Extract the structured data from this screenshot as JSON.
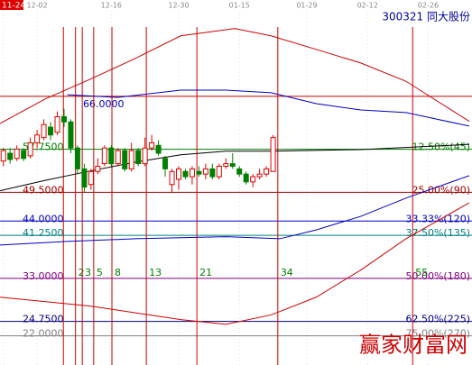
{
  "chart_data": {
    "type": "candlestick",
    "title": "300321 同大股份",
    "watermark": "赢家财富网",
    "xlim": [
      -0.5,
      69.5
    ],
    "ylim": [
      16.4,
      84.3
    ],
    "xticks": [
      {
        "value": 0,
        "label": "11-24"
      },
      {
        "value": 5,
        "label": "12-02"
      },
      {
        "value": 16,
        "label": "12-16"
      },
      {
        "value": 26,
        "label": "12-30"
      },
      {
        "value": 35,
        "label": "01-15"
      },
      {
        "value": 45,
        "label": "01-29"
      },
      {
        "value": 54,
        "label": "02-12"
      },
      {
        "value": 63,
        "label": "02-26"
      }
    ],
    "up_color": "#e00000",
    "down_color": "#008000",
    "open": [
      55.5,
      57,
      56,
      57.5,
      56.5,
      59,
      60,
      62,
      61,
      64,
      63,
      58,
      54,
      51,
      53.5,
      55,
      58,
      55,
      57.5,
      54,
      57.5,
      55,
      58,
      58.5,
      56,
      51,
      52,
      53.5,
      52.5,
      53.5,
      53,
      54,
      52.5,
      54.5,
      55,
      54,
      53,
      51.5,
      52.5,
      53,
      53.5
    ],
    "high": [
      58,
      58,
      58.5,
      58,
      60,
      61.5,
      63.5,
      63,
      65,
      65.5,
      63.5,
      58.5,
      55,
      54,
      56,
      58.5,
      58.5,
      58,
      58,
      59,
      58,
      60,
      60.5,
      59.5,
      56.5,
      54,
      54.5,
      54,
      54.5,
      54.5,
      55,
      55,
      55,
      56,
      57,
      54.5,
      53.5,
      53,
      54,
      54.5,
      60.5
    ],
    "low": [
      54.5,
      55,
      55.5,
      55.5,
      56,
      58,
      59.5,
      59.5,
      60.5,
      62,
      57,
      53,
      49.5,
      50,
      53,
      54.5,
      54.5,
      54.5,
      53.5,
      53.5,
      54.5,
      54.5,
      57.5,
      56.5,
      52.5,
      49.5,
      50,
      52,
      51,
      52.5,
      52,
      52,
      52,
      54,
      54,
      52.5,
      51,
      50.5,
      52,
      52.5,
      53.5
    ],
    "close": [
      57.5,
      55.8,
      57.8,
      56,
      59,
      60.5,
      62.5,
      60.5,
      64,
      63,
      58,
      54,
      50.5,
      53.5,
      54.5,
      58,
      55,
      57.5,
      54,
      57.5,
      55,
      58,
      59,
      57,
      54,
      53.5,
      54,
      52.5,
      54,
      53,
      54,
      52.5,
      54.5,
      55,
      54.5,
      53,
      51.5,
      52.5,
      53,
      54,
      60
    ],
    "bands": [
      {
        "color": "#d00000",
        "x": [
          -0.5,
          6.2,
          12.9,
          19.6,
          26.3,
          34.3,
          39.7,
          46.4,
          53,
          59.7,
          69.1
        ],
        "values": [
          62.7,
          67.4,
          71.2,
          75.2,
          79.5,
          80.9,
          79.5,
          76.9,
          74.3,
          70.8,
          63.1
        ]
      },
      {
        "color": "#0000c0",
        "x": [
          9.5,
          16.9,
          26.3,
          33,
          39.7,
          46.4,
          53,
          59.7,
          69.1
        ],
        "values": [
          68.2,
          67.7,
          69.1,
          69.1,
          68.6,
          66.5,
          65.3,
          64.8,
          62.2
        ]
      },
      {
        "color": "#0000c0",
        "x": [
          -0.5,
          9.5,
          19.6,
          33,
          41,
          46.4,
          53,
          59.7,
          69.1
        ],
        "values": [
          39.4,
          40.1,
          40.6,
          41,
          40.6,
          42.3,
          44.9,
          48.4,
          52.7
        ]
      },
      {
        "color": "#000000",
        "x": [
          -0.5,
          6.2,
          12.9,
          19.6,
          26.3,
          33,
          39.7,
          53,
          69.1
        ],
        "values": [
          49.8,
          51.8,
          53.6,
          55.3,
          56.7,
          57.4,
          57.4,
          57.7,
          58.7
        ]
      },
      {
        "color": "#d00000",
        "x": [
          -0.5,
          12.9,
          26.3,
          33,
          39.7,
          46.4,
          53,
          59.7,
          69.1
        ],
        "values": [
          29.4,
          27.7,
          25.1,
          24.2,
          26,
          29.4,
          34.6,
          40.6,
          47.5
        ]
      }
    ],
    "levels": [
      {
        "value": 67.9,
        "color": "#c00000"
      },
      {
        "value": 66,
        "label": "66.0000",
        "color": "#0000c0",
        "line": false
      },
      {
        "value": 57.75,
        "label": "57.7500",
        "right_label": "12.50%(45)",
        "color": "#008000"
      },
      {
        "value": 49.5,
        "label": "49.5000",
        "right_label": "25.00%(90)",
        "color": "#a00000"
      },
      {
        "value": 44,
        "label": "44.0000",
        "right_label": "33.33%(120)",
        "color": "#0000c0"
      },
      {
        "value": 41.25,
        "label": "41.2500",
        "right_label": "37.50%(135)",
        "color": "#008080"
      },
      {
        "value": 33,
        "label": "33.0000",
        "right_label": "50.00%(180)",
        "color": "#800080"
      },
      {
        "value": 24.75,
        "label": "24.7500",
        "right_label": "62.50%(225)",
        "color": "#000080"
      },
      {
        "value": 22,
        "label": "22.0000",
        "right_label": "75.00%(270)",
        "color": "#808080"
      }
    ],
    "cycle_lines": {
      "color": "#d00000",
      "label_color": "#008000",
      "x": [
        8.9,
        10.7,
        11.7,
        13.4,
        16.1,
        21.2,
        28.7,
        40.7,
        60.7
      ],
      "labels": [
        null,
        "2",
        "3",
        "5",
        "8",
        "13",
        "21",
        "34",
        "55"
      ]
    }
  }
}
